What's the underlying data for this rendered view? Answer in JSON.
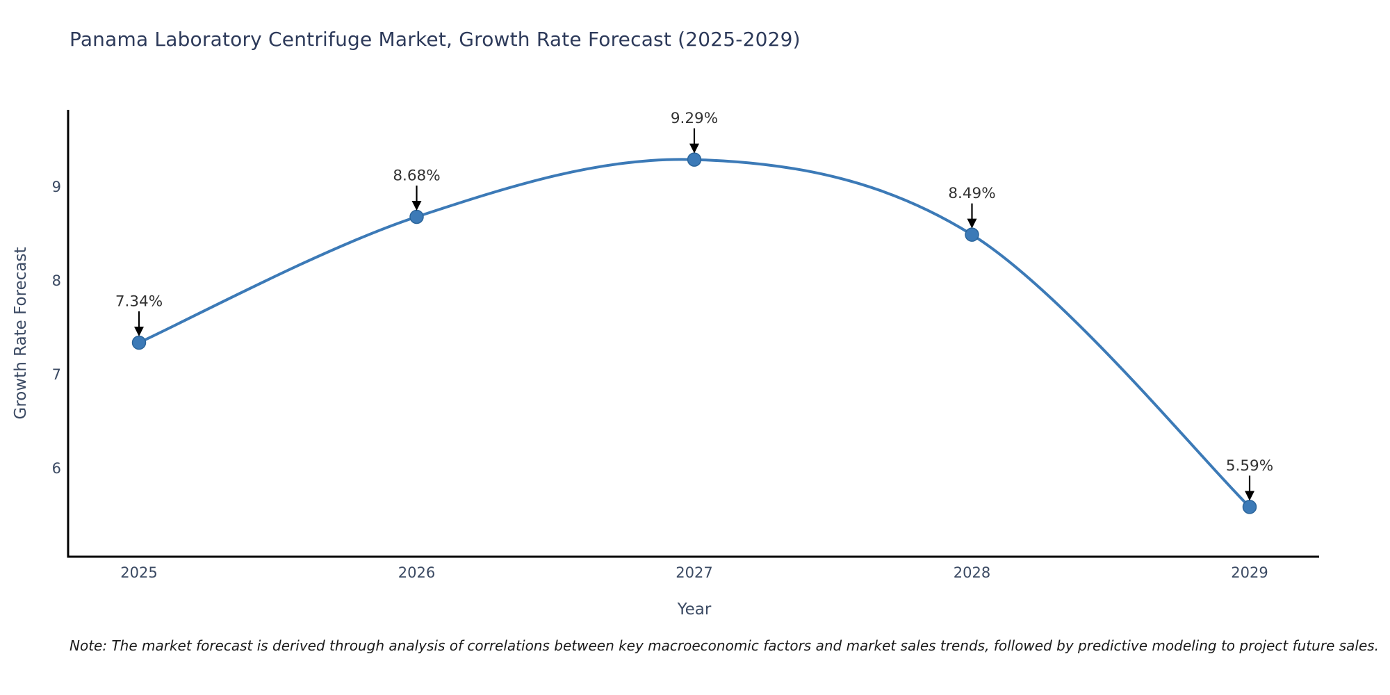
{
  "page": {
    "note": "Note: The market forecast is derived through analysis of correlations between key macroeconomic factors and market sales trends, followed by predictive modeling to project future sales."
  },
  "colors": {
    "background": "#ffffff",
    "line": "#3c7ab7",
    "marker_fill": "#3c7ab7",
    "marker_edge": "#2b659b",
    "axis": "#000000",
    "arrow": "#000000",
    "annotation_text": "#333333",
    "tick_text": "#3b4a63",
    "axis_label_text": "#3b4a63",
    "title_text": "#2d3a5a",
    "note_text": "#1a1a1a"
  },
  "chart_data": {
    "type": "line",
    "title": "Panama Laboratory Centrifuge Market, Growth Rate Forecast (2025-2029)",
    "xlabel": "Year",
    "ylabel": "Growth Rate Forecast",
    "categories": [
      "2025",
      "2026",
      "2027",
      "2028",
      "2029"
    ],
    "values": [
      7.34,
      8.68,
      9.29,
      8.49,
      5.59
    ],
    "point_labels": [
      "7.34%",
      "8.68%",
      "9.29%",
      "8.49%",
      "5.59%"
    ],
    "yticks": [
      6,
      7,
      8,
      9
    ],
    "ylim": [
      5.06,
      9.82
    ],
    "grid": false,
    "legend": "none",
    "line_style": "smooth",
    "markers": true,
    "annotation_style": "value label with black down-arrow above each data point"
  }
}
